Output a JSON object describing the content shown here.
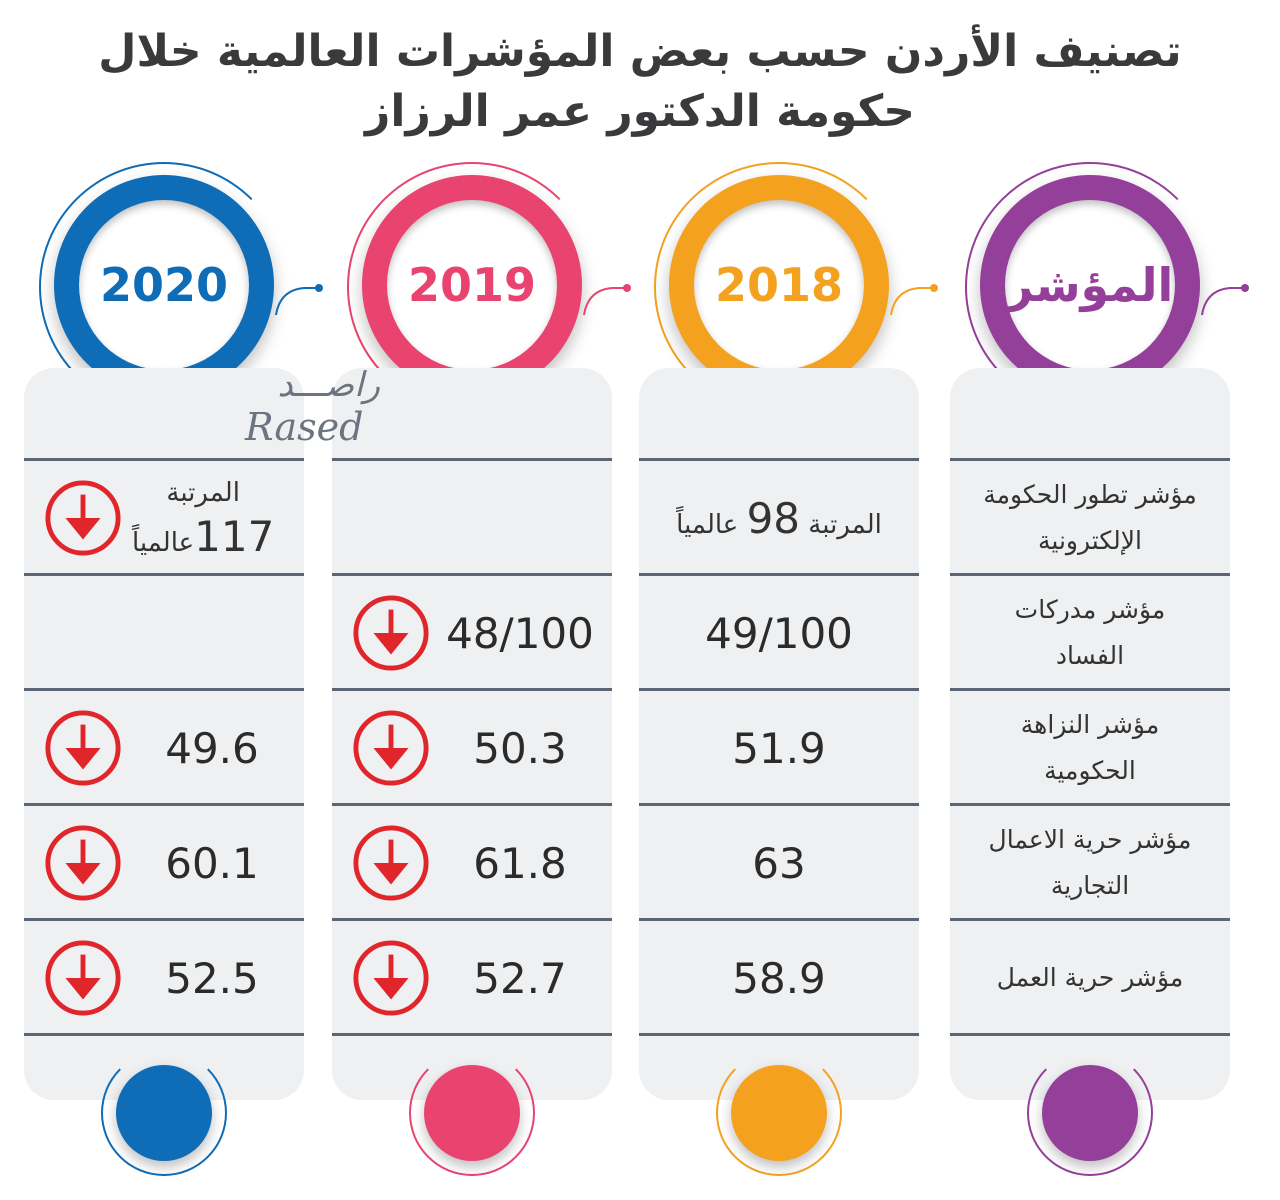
{
  "title": {
    "line1": "تصنيف الأردن حسب بعض المؤشرات العالمية خلال",
    "line2": "حكومة الدكتور عمر الرزاز"
  },
  "columns": [
    {
      "key": "indicator",
      "header": "المؤشر",
      "color": "#943f99"
    },
    {
      "key": "y2018",
      "header": "2018",
      "color": "#f4a11f"
    },
    {
      "key": "y2019",
      "header": "2019",
      "color": "#e8446f"
    },
    {
      "key": "y2020",
      "header": "2020",
      "color": "#0f6cb6"
    }
  ],
  "rows": [
    {
      "indicator": "مؤشر تطور الحكومة الإلكترونية",
      "y2018": {
        "prefix": "المرتبة",
        "value": "98",
        "suffix": "عالمياً",
        "down": false
      },
      "y2019": null,
      "y2020": {
        "prefix": "المرتبة",
        "value": "117",
        "suffix": "عالمياً",
        "down": true
      }
    },
    {
      "indicator": "مؤشر مدركات الفساد",
      "y2018": {
        "value": "49/100",
        "down": false
      },
      "y2019": {
        "value": "48/100",
        "down": true
      },
      "y2020": null
    },
    {
      "indicator": "مؤشر النزاهة الحكومية",
      "y2018": {
        "value": "51.9",
        "down": false
      },
      "y2019": {
        "value": "50.3",
        "down": true
      },
      "y2020": {
        "value": "49.6",
        "down": true
      }
    },
    {
      "indicator": "مؤشر حرية الاعمال التجارية",
      "y2018": {
        "value": "63",
        "down": false
      },
      "y2019": {
        "value": "61.8",
        "down": true
      },
      "y2020": {
        "value": "60.1",
        "down": true
      }
    },
    {
      "indicator": "مؤشر حرية العمل",
      "y2018": {
        "value": "58.9",
        "down": false
      },
      "y2019": {
        "value": "52.7",
        "down": true
      },
      "y2020": {
        "value": "52.5",
        "down": true
      }
    }
  ],
  "watermark": {
    "arabic": "راصـــد",
    "latin": "Rased"
  },
  "arrow_color": "#e0262b"
}
